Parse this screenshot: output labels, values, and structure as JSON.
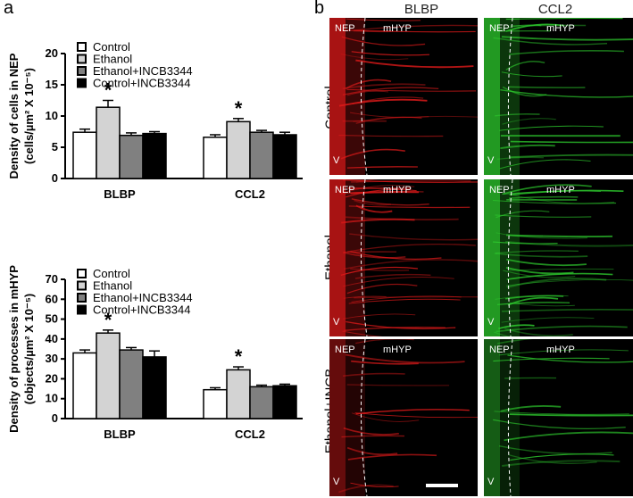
{
  "panel_labels": {
    "a": "a",
    "b": "b"
  },
  "colors": {
    "control": "#ffffff",
    "ethanol": "#d3d3d3",
    "ethanol_incb": "#808080",
    "control_incb": "#000000",
    "blbp_stain": "#e01a1a",
    "ccl2_stain": "#2ecc2e"
  },
  "legend": [
    "Control",
    "Ethanol",
    "Ethanol+INCB3344",
    "Control+INCB3344"
  ],
  "chart_data": [
    {
      "type": "bar",
      "ylabel_line1": "Density of cells in NEP",
      "ylabel_line2": "(cells/µm² X 10⁻⁵)",
      "categories": [
        "BLBP",
        "CCL2"
      ],
      "ylim": [
        0,
        20
      ],
      "yticks": [
        "0",
        "5",
        "10",
        "15",
        "20"
      ],
      "series": [
        {
          "name": "Control",
          "values": [
            7.4,
            6.6
          ],
          "errors": [
            0.5,
            0.4
          ]
        },
        {
          "name": "Ethanol",
          "values": [
            11.4,
            9.1
          ],
          "errors": [
            1.1,
            0.5
          ]
        },
        {
          "name": "Ethanol+INCB3344",
          "values": [
            6.9,
            7.4
          ],
          "errors": [
            0.4,
            0.3
          ]
        },
        {
          "name": "Control+INCB3344",
          "values": [
            7.2,
            7.0
          ],
          "errors": [
            0.3,
            0.4
          ]
        }
      ],
      "significance": [
        {
          "category": "BLBP",
          "series": "Ethanol",
          "mark": "*"
        },
        {
          "category": "CCL2",
          "series": "Ethanol",
          "mark": "*"
        }
      ]
    },
    {
      "type": "bar",
      "ylabel_line1": "Density of processes in mHYP",
      "ylabel_line2": "(objects/µm² X 10⁻⁵)",
      "categories": [
        "BLBP",
        "CCL2"
      ],
      "ylim": [
        0,
        70
      ],
      "yticks": [
        "0",
        "10",
        "20",
        "30",
        "40",
        "50",
        "60",
        "70"
      ],
      "series": [
        {
          "name": "Control",
          "values": [
            33,
            14.5
          ],
          "errors": [
            1.5,
            1.0
          ]
        },
        {
          "name": "Ethanol",
          "values": [
            43,
            24.5
          ],
          "errors": [
            1.5,
            1.5
          ]
        },
        {
          "name": "Ethanol+INCB3344",
          "values": [
            34.5,
            16
          ],
          "errors": [
            1.2,
            0.8
          ]
        },
        {
          "name": "Control+INCB3344",
          "values": [
            31,
            16.5
          ],
          "errors": [
            3.0,
            0.8
          ]
        }
      ],
      "significance": [
        {
          "category": "BLBP",
          "series": "Ethanol",
          "mark": "*"
        },
        {
          "category": "CCL2",
          "series": "Ethanol",
          "mark": "*"
        }
      ]
    }
  ],
  "micrographs": {
    "columns": [
      "BLBP",
      "CCL2"
    ],
    "rows": [
      "Control",
      "Ethanol",
      "Ethanol+INCB"
    ],
    "region_labels": {
      "nep": "NEP",
      "mhyp": "mHYP",
      "ventricle": "V"
    }
  }
}
